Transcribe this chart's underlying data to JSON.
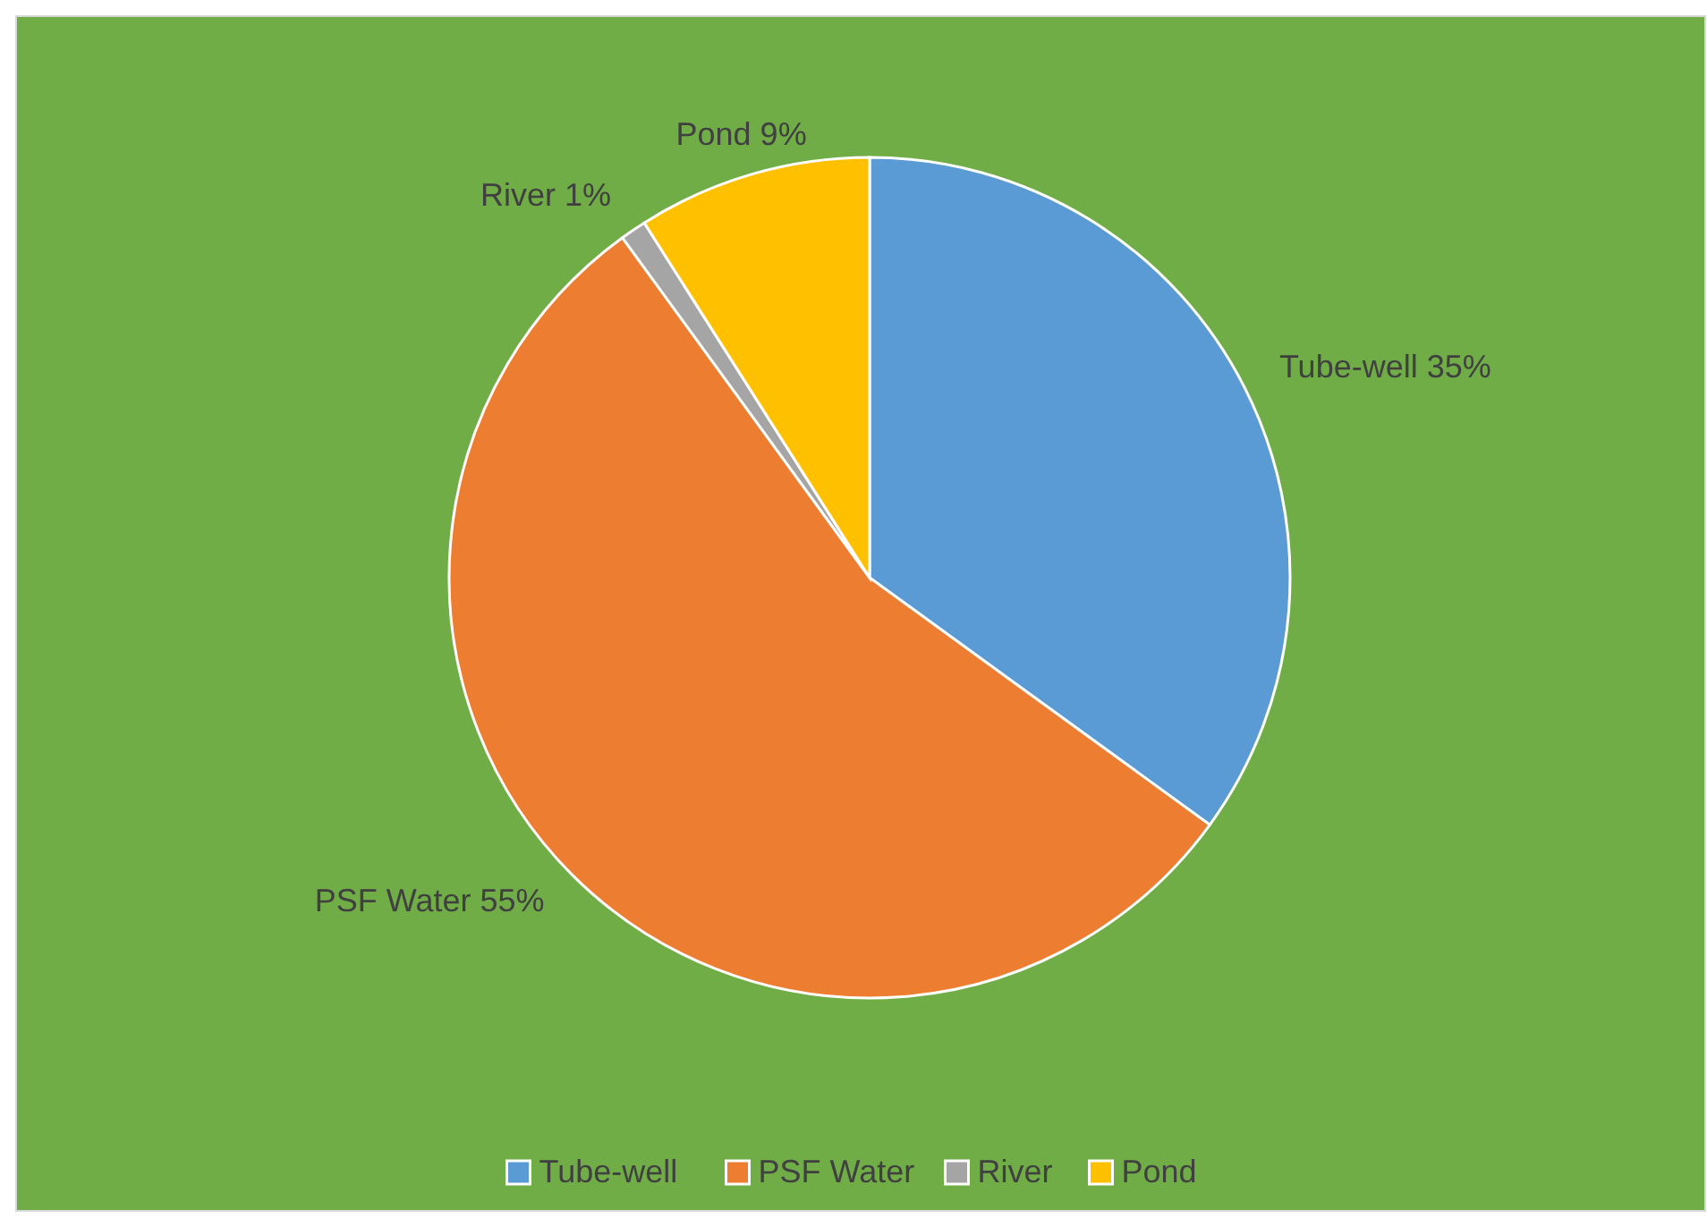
{
  "chart_data": {
    "type": "pie",
    "categories": [
      "Tube-well",
      "PSF Water",
      "River",
      "Pond"
    ],
    "values": [
      35,
      55,
      1,
      9
    ],
    "value_labels": [
      "35%",
      "55%",
      "1%",
      "9%"
    ],
    "colors": [
      "#5b9bd5",
      "#ed7d31",
      "#a5a5a5",
      "#ffc000"
    ],
    "legend": "bottom"
  }
}
